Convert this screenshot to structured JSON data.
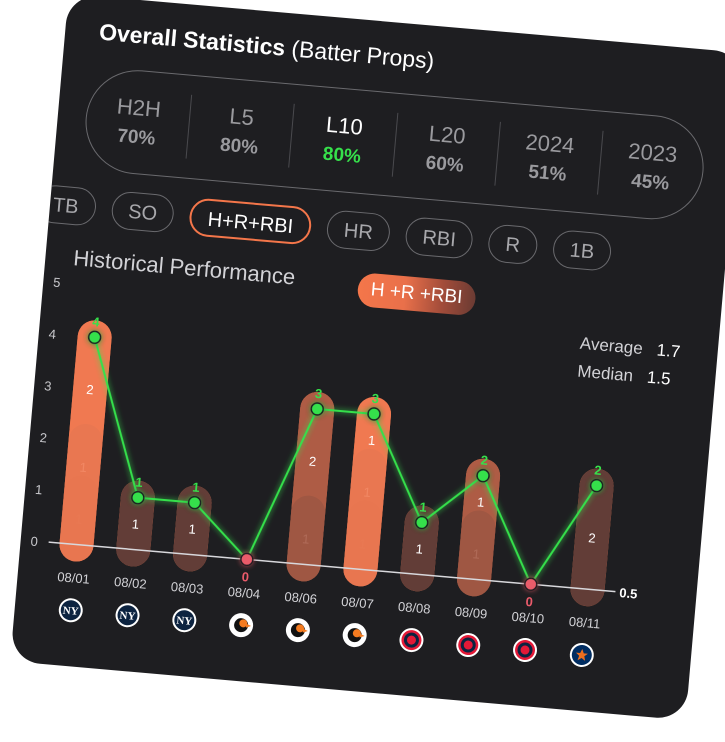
{
  "header": {
    "title_bold": "Overall Statistics",
    "title_rest": "(Batter Props)"
  },
  "stats": [
    {
      "label": "H2H",
      "value": "70%",
      "active": false
    },
    {
      "label": "L5",
      "value": "80%",
      "active": false
    },
    {
      "label": "L10",
      "value": "80%",
      "active": true
    },
    {
      "label": "L20",
      "value": "60%",
      "active": false
    },
    {
      "label": "2024",
      "value": "51%",
      "active": false
    },
    {
      "label": "2023",
      "value": "45%",
      "active": false
    }
  ],
  "tabs": [
    {
      "label": "TB",
      "active": false
    },
    {
      "label": "SO",
      "active": false
    },
    {
      "label": "H+R+RBI",
      "active": true
    },
    {
      "label": "HR",
      "active": false
    },
    {
      "label": "RBI",
      "active": false
    },
    {
      "label": "R",
      "active": false
    },
    {
      "label": "1B",
      "active": false
    }
  ],
  "section": {
    "title": "Historical Performance",
    "pill": "H +R +RBI"
  },
  "summary": {
    "average_label": "Average",
    "average_value": "1.7",
    "median_label": "Median",
    "median_value": "1.5"
  },
  "colors": {
    "accent": "#f4764a",
    "line": "#36e04b",
    "zero": "#ea5b6b",
    "card": "#1e1e21"
  },
  "chart_data": {
    "type": "bar",
    "categories": [
      "08/01",
      "08/02",
      "08/03",
      "08/04",
      "08/06",
      "08/07",
      "08/08",
      "08/09",
      "08/10",
      "08/11"
    ],
    "values": [
      4,
      1,
      1,
      0,
      3,
      3,
      1,
      2,
      0,
      2
    ],
    "segments": [
      [
        1,
        1,
        2
      ],
      [
        1
      ],
      [
        1
      ],
      [],
      [
        1,
        2
      ],
      [
        1,
        1,
        1
      ],
      [
        1
      ],
      [
        1,
        1
      ],
      [],
      [
        2
      ]
    ],
    "value_labels": [
      "4",
      "1",
      "1",
      "0",
      "3",
      "3",
      "1",
      "2",
      "0",
      "2"
    ],
    "opponent_icons": [
      "yankees-logo-icon",
      "yankees-logo-icon",
      "yankees-logo-icon",
      "orioles-logo-icon",
      "orioles-logo-icon",
      "orioles-logo-icon",
      "guardians-logo-icon",
      "guardians-logo-icon",
      "guardians-logo-icon",
      "astros-logo-icon"
    ],
    "y_ticks": [
      "0",
      "1",
      "2",
      "3",
      "4",
      "5"
    ],
    "ylim": [
      0,
      5
    ],
    "threshold": 0.5,
    "threshold_label": "0.5"
  }
}
